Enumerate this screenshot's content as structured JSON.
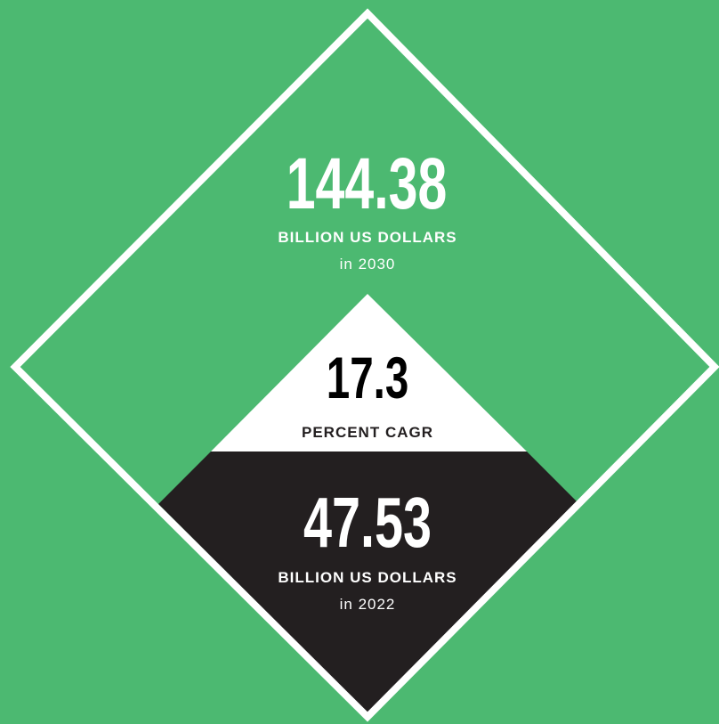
{
  "top": {
    "value": 144.38,
    "unit": "BILLION US DOLLARS",
    "year": "in 2030"
  },
  "middle": {
    "value": 17.3,
    "unit": "PERCENT CAGR"
  },
  "bottom": {
    "value": 47.53,
    "unit": "BILLION US DOLLARS",
    "year": "in 2022"
  }
}
